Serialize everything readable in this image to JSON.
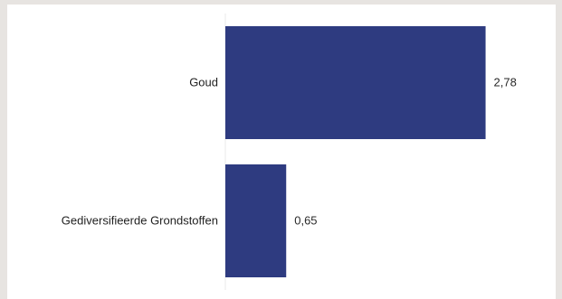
{
  "chart_data": {
    "type": "bar",
    "orientation": "horizontal",
    "categories": [
      "Goud",
      "Gediversifieerde Grondstoffen"
    ],
    "values": [
      2.78,
      0.65
    ],
    "value_labels": [
      "2,78",
      "0,65"
    ],
    "xlim": [
      0,
      3.2
    ],
    "grid": false,
    "legend": "none",
    "colors": {
      "bar": "#2e3b80",
      "background": "#ffffff",
      "outer_background": "#e7e4e1",
      "axis": "#e8e8e8"
    }
  }
}
